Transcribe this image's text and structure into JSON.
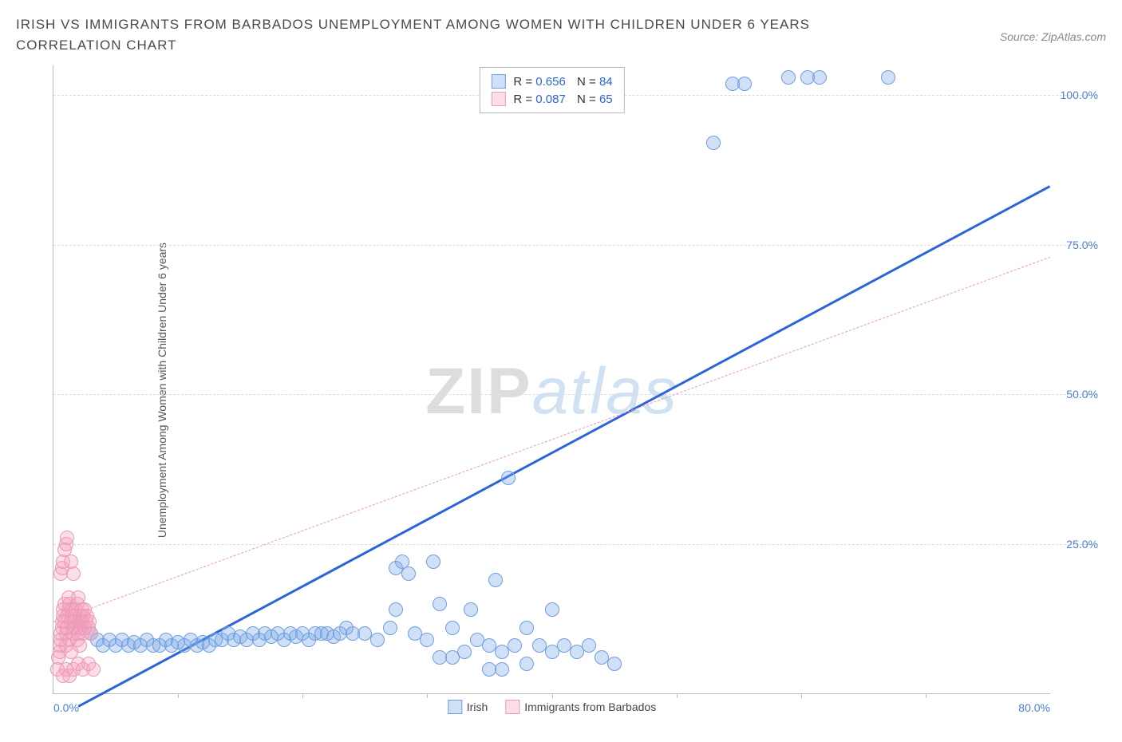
{
  "title": "IRISH VS IMMIGRANTS FROM BARBADOS UNEMPLOYMENT AMONG WOMEN WITH CHILDREN UNDER 6 YEARS CORRELATION CHART",
  "source_label": "Source: ZipAtlas.com",
  "ylabel": "Unemployment Among Women with Children Under 6 years",
  "watermark": {
    "part1": "ZIP",
    "part2": "atlas"
  },
  "chart": {
    "type": "scatter",
    "background_color": "#ffffff",
    "grid_color": "#dcdcdc",
    "axis_color": "#bbbbbb",
    "tick_label_color": "#4a7fd8",
    "xlim": [
      0,
      80
    ],
    "ylim": [
      0,
      105
    ],
    "yticks": [
      {
        "v": 25,
        "label": "25.0%"
      },
      {
        "v": 50,
        "label": "50.0%"
      },
      {
        "v": 75,
        "label": "75.0%"
      },
      {
        "v": 100,
        "label": "100.0%"
      }
    ],
    "xticks_minor": [
      10,
      20,
      30,
      40,
      50,
      60,
      70
    ],
    "xtick_labels": [
      {
        "v": 0,
        "label": "0.0%",
        "cls": "first"
      },
      {
        "v": 80,
        "label": "80.0%",
        "cls": "last"
      }
    ],
    "series": [
      {
        "name": "Irish",
        "fill": "rgba(120,165,230,0.35)",
        "stroke": "#6f9ee0",
        "marker_radius": 9,
        "regression": {
          "color": "#2b65d9",
          "width": 2.5,
          "style": "solid",
          "x0": 2,
          "y0": -2,
          "x1": 80,
          "y1": 85
        },
        "stats": {
          "R": "0.656",
          "N": "84"
        },
        "points": [
          [
            3,
            10
          ],
          [
            3.5,
            9
          ],
          [
            4,
            8
          ],
          [
            4.5,
            9
          ],
          [
            5,
            8
          ],
          [
            5.5,
            9
          ],
          [
            6,
            8
          ],
          [
            6.5,
            8.5
          ],
          [
            7,
            8
          ],
          [
            7.5,
            9
          ],
          [
            8,
            8
          ],
          [
            8.5,
            8
          ],
          [
            9,
            9
          ],
          [
            9.5,
            8
          ],
          [
            10,
            8.5
          ],
          [
            10.5,
            8
          ],
          [
            11,
            9
          ],
          [
            11.5,
            8
          ],
          [
            12,
            8.5
          ],
          [
            12.5,
            8
          ],
          [
            13,
            9
          ],
          [
            13.5,
            9
          ],
          [
            14,
            10
          ],
          [
            14.5,
            9
          ],
          [
            15,
            9.5
          ],
          [
            15.5,
            9
          ],
          [
            16,
            10
          ],
          [
            16.5,
            9
          ],
          [
            17,
            10
          ],
          [
            17.5,
            9.5
          ],
          [
            18,
            10
          ],
          [
            18.5,
            9
          ],
          [
            19,
            10
          ],
          [
            19.5,
            9.5
          ],
          [
            20,
            10
          ],
          [
            20.5,
            9
          ],
          [
            21,
            10
          ],
          [
            21.5,
            10
          ],
          [
            22,
            10
          ],
          [
            22.5,
            9.5
          ],
          [
            23,
            10
          ],
          [
            23.5,
            11
          ],
          [
            24,
            10
          ],
          [
            25,
            10
          ],
          [
            26,
            9
          ],
          [
            27,
            11
          ],
          [
            27.5,
            14
          ],
          [
            27.5,
            21
          ],
          [
            28,
            22
          ],
          [
            28.5,
            20
          ],
          [
            29,
            10
          ],
          [
            30,
            9
          ],
          [
            30.5,
            22
          ],
          [
            31,
            6
          ],
          [
            31,
            15
          ],
          [
            32,
            11
          ],
          [
            32,
            6
          ],
          [
            33,
            7
          ],
          [
            33.5,
            14
          ],
          [
            34,
            9
          ],
          [
            35,
            8
          ],
          [
            35,
            4
          ],
          [
            35.5,
            19
          ],
          [
            36,
            7
          ],
          [
            36,
            4
          ],
          [
            37,
            8
          ],
          [
            38,
            5
          ],
          [
            38,
            11
          ],
          [
            39,
            8
          ],
          [
            40,
            14
          ],
          [
            40,
            7
          ],
          [
            41,
            8
          ],
          [
            42,
            7
          ],
          [
            43,
            8
          ],
          [
            44,
            6
          ],
          [
            45,
            5
          ],
          [
            36.5,
            36
          ],
          [
            53,
            92
          ],
          [
            54.5,
            102
          ],
          [
            55.5,
            102
          ],
          [
            59,
            103
          ],
          [
            60.5,
            103
          ],
          [
            61.5,
            103
          ],
          [
            67,
            103
          ]
        ]
      },
      {
        "name": "Immigrants from Barbados",
        "fill": "rgba(245,160,190,0.35)",
        "stroke": "#e99ab8",
        "marker_radius": 9,
        "regression": {
          "color": "#e99ab8",
          "width": 1,
          "style": "dashed",
          "x0": 0,
          "y0": 12,
          "x1": 80,
          "y1": 73
        },
        "stats": {
          "R": "0.087",
          "N": "65"
        },
        "points": [
          [
            0.3,
            4
          ],
          [
            0.4,
            6
          ],
          [
            0.5,
            7
          ],
          [
            0.5,
            8
          ],
          [
            0.6,
            9
          ],
          [
            0.6,
            10
          ],
          [
            0.7,
            11
          ],
          [
            0.7,
            12
          ],
          [
            0.8,
            13
          ],
          [
            0.8,
            14
          ],
          [
            0.9,
            15
          ],
          [
            0.9,
            12
          ],
          [
            1.0,
            10
          ],
          [
            1.0,
            8
          ],
          [
            1.1,
            11
          ],
          [
            1.1,
            13
          ],
          [
            1.2,
            14
          ],
          [
            1.2,
            16
          ],
          [
            1.3,
            15
          ],
          [
            1.3,
            9
          ],
          [
            1.4,
            7
          ],
          [
            1.4,
            12
          ],
          [
            1.5,
            13
          ],
          [
            1.5,
            14
          ],
          [
            1.6,
            11
          ],
          [
            1.6,
            10
          ],
          [
            1.7,
            12
          ],
          [
            1.7,
            13
          ],
          [
            1.8,
            14
          ],
          [
            1.8,
            11
          ],
          [
            1.9,
            9
          ],
          [
            1.9,
            15
          ],
          [
            2.0,
            16
          ],
          [
            2.0,
            10
          ],
          [
            2.1,
            8
          ],
          [
            2.1,
            12
          ],
          [
            2.2,
            13
          ],
          [
            2.2,
            11
          ],
          [
            2.3,
            14
          ],
          [
            2.3,
            12
          ],
          [
            2.4,
            10
          ],
          [
            2.4,
            13
          ],
          [
            2.5,
            11
          ],
          [
            2.5,
            14
          ],
          [
            2.6,
            12
          ],
          [
            2.7,
            13
          ],
          [
            2.8,
            11
          ],
          [
            2.9,
            12
          ],
          [
            3.0,
            10
          ],
          [
            0.6,
            20
          ],
          [
            0.7,
            21
          ],
          [
            0.8,
            22
          ],
          [
            0.9,
            24
          ],
          [
            1.0,
            25
          ],
          [
            1.1,
            26
          ],
          [
            1.4,
            22
          ],
          [
            1.6,
            20
          ],
          [
            0.8,
            3
          ],
          [
            1.0,
            4
          ],
          [
            1.3,
            3
          ],
          [
            1.6,
            4
          ],
          [
            2.0,
            5
          ],
          [
            2.4,
            4
          ],
          [
            2.8,
            5
          ],
          [
            3.2,
            4
          ]
        ]
      }
    ],
    "bottom_legend": [
      {
        "label": "Irish",
        "fill": "rgba(120,165,230,0.35)",
        "stroke": "#6f9ee0"
      },
      {
        "label": "Immigrants from Barbados",
        "fill": "rgba(245,160,190,0.35)",
        "stroke": "#e99ab8"
      }
    ]
  }
}
